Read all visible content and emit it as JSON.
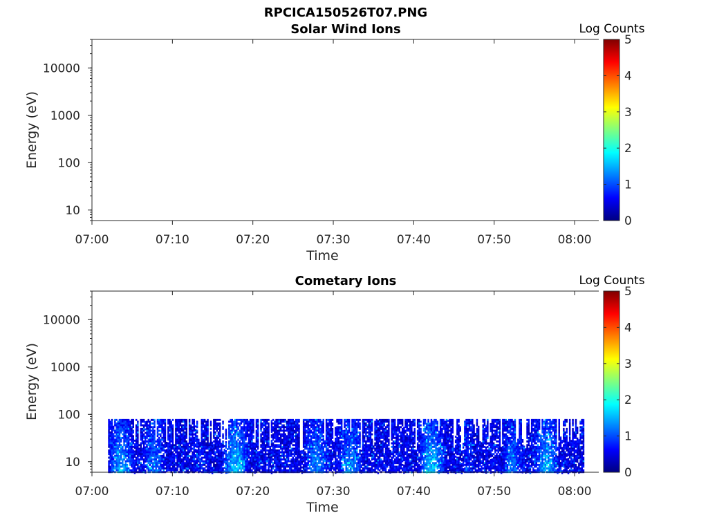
{
  "figure": {
    "title": "RPCICA150526T07.PNG"
  },
  "colors": {
    "axis": "#262626",
    "colormap": [
      "#000080",
      "#0000ff",
      "#00ffff",
      "#ffff00",
      "#ff0000",
      "#800000"
    ]
  },
  "chart_data": [
    {
      "type": "heatmap",
      "title": "Solar Wind Ions",
      "xlabel": "Time",
      "ylabel": "Energy (eV)",
      "x_ticks": [
        "07:00",
        "07:10",
        "07:20",
        "07:30",
        "07:40",
        "07:50",
        "08:00"
      ],
      "x_range": [
        "07:00",
        "08:03"
      ],
      "y_scale": "log",
      "y_ticks": [
        "10",
        "100",
        "1000",
        "10000"
      ],
      "y_range": [
        6,
        40000
      ],
      "colorbar": {
        "label": "Log Counts",
        "range": [
          0,
          5
        ],
        "ticks": [
          "0",
          "1",
          "2",
          "3",
          "4",
          "5"
        ]
      },
      "data_extent": null
    },
    {
      "type": "heatmap",
      "title": "Cometary Ions",
      "xlabel": "Time",
      "ylabel": "Energy (eV)",
      "x_ticks": [
        "07:00",
        "07:10",
        "07:20",
        "07:30",
        "07:40",
        "07:50",
        "08:00"
      ],
      "x_range": [
        "07:00",
        "08:03"
      ],
      "y_scale": "log",
      "y_ticks": [
        "10",
        "100",
        "1000",
        "10000"
      ],
      "y_range": [
        6,
        40000
      ],
      "colorbar": {
        "label": "Log Counts",
        "range": [
          0,
          5
        ],
        "ticks": [
          "0",
          "1",
          "2",
          "3",
          "4",
          "5"
        ]
      },
      "data_extent": {
        "x_start": "07:02",
        "x_end": "08:01",
        "energy_min": 6,
        "energy_max": 80,
        "log_counts_range": [
          0,
          2
        ]
      }
    }
  ]
}
